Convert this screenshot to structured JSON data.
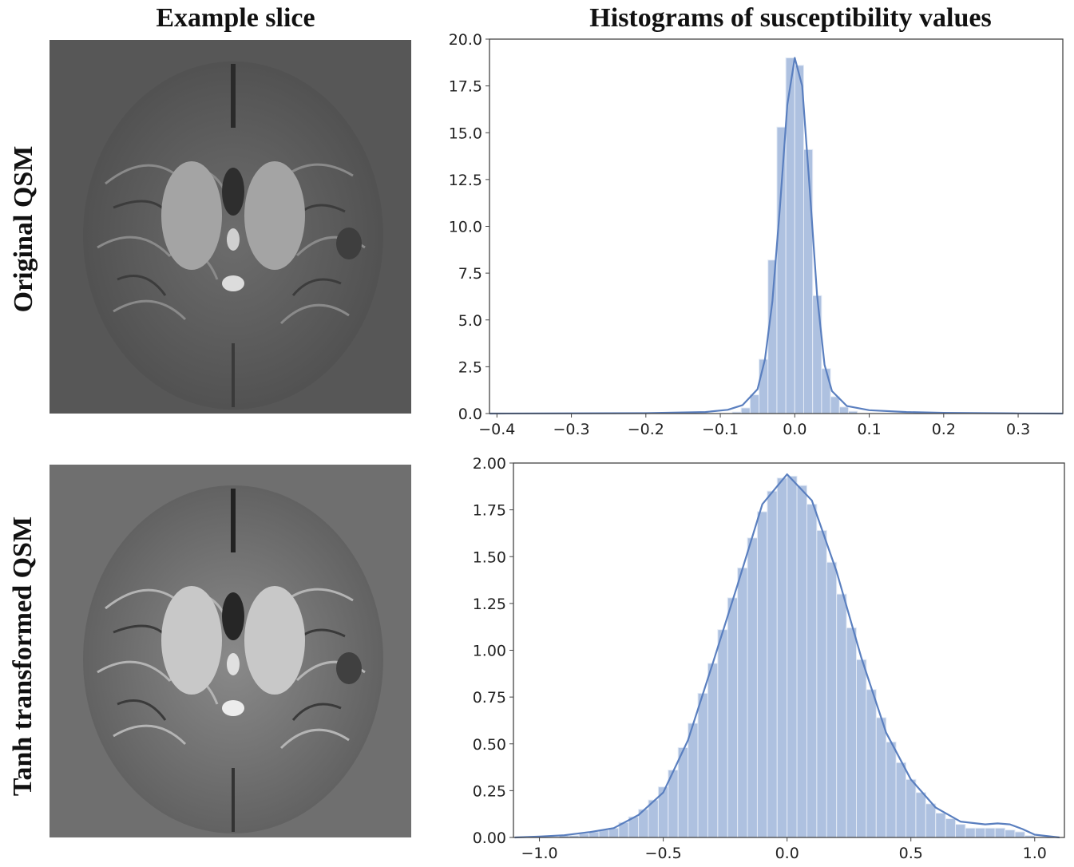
{
  "headings": {
    "left": "Example slice",
    "right": "Histograms of susceptibility values"
  },
  "rows": [
    {
      "label": "Original QSM",
      "background": "#575757"
    },
    {
      "label": "Tanh transformed QSM",
      "background": "#6f6f6f"
    }
  ],
  "colors": {
    "bar_fill": "#aec1e0",
    "bar_edge": "#e4ebf6",
    "kde_line": "#5a7fbf"
  },
  "chart_data": [
    {
      "type": "bar",
      "title": "",
      "xlabel": "",
      "ylabel": "",
      "xlim": [
        -0.41,
        0.36
      ],
      "ylim": [
        0,
        20.0
      ],
      "xticks": [
        -0.4,
        -0.3,
        -0.2,
        -0.1,
        0.0,
        0.1,
        0.2,
        0.3
      ],
      "xtick_labels": [
        "−0.4",
        "−0.3",
        "−0.2",
        "−0.1",
        "0.0",
        "0.1",
        "0.2",
        "0.3"
      ],
      "yticks": [
        0.0,
        2.5,
        5.0,
        7.5,
        10.0,
        12.5,
        15.0,
        17.5,
        20.0
      ],
      "ytick_labels": [
        "0.0",
        "2.5",
        "5.0",
        "7.5",
        "10.0",
        "12.5",
        "15.0",
        "17.5",
        "20.0"
      ],
      "bin_width": 0.012,
      "bin_centers": [
        -0.078,
        -0.066,
        -0.054,
        -0.042,
        -0.03,
        -0.018,
        -0.006,
        0.006,
        0.018,
        0.03,
        0.042,
        0.054,
        0.066,
        0.078
      ],
      "values": [
        0.08,
        0.3,
        1.0,
        2.9,
        8.2,
        15.3,
        19.0,
        18.6,
        14.1,
        6.3,
        2.4,
        0.9,
        0.35,
        0.12
      ],
      "kde": {
        "x": [
          -0.41,
          -0.2,
          -0.12,
          -0.09,
          -0.07,
          -0.05,
          -0.04,
          -0.03,
          -0.02,
          -0.01,
          0.0,
          0.01,
          0.02,
          0.03,
          0.04,
          0.05,
          0.07,
          0.1,
          0.15,
          0.2,
          0.3,
          0.36
        ],
        "y": [
          0.0,
          0.02,
          0.08,
          0.2,
          0.45,
          1.3,
          2.9,
          6.0,
          11.0,
          16.5,
          19.0,
          17.5,
          12.0,
          6.3,
          2.6,
          1.2,
          0.4,
          0.18,
          0.08,
          0.04,
          0.01,
          0.0
        ]
      }
    },
    {
      "type": "bar",
      "title": "",
      "xlabel": "",
      "ylabel": "",
      "xlim": [
        -1.105,
        1.12
      ],
      "ylim": [
        0,
        2.0
      ],
      "xticks": [
        -1.0,
        -0.5,
        0.0,
        0.5,
        1.0
      ],
      "xtick_labels": [
        "−1.0",
        "−0.5",
        "0.0",
        "0.5",
        "1.0"
      ],
      "yticks": [
        0.0,
        0.25,
        0.5,
        0.75,
        1.0,
        1.25,
        1.5,
        1.75,
        2.0
      ],
      "ytick_labels": [
        "0.00",
        "0.25",
        "0.50",
        "0.75",
        "1.00",
        "1.25",
        "1.50",
        "1.75",
        "2.00"
      ],
      "bin_width": 0.04,
      "bin_centers": [
        -0.9,
        -0.86,
        -0.82,
        -0.78,
        -0.74,
        -0.7,
        -0.66,
        -0.62,
        -0.58,
        -0.54,
        -0.5,
        -0.46,
        -0.42,
        -0.38,
        -0.34,
        -0.3,
        -0.26,
        -0.22,
        -0.18,
        -0.14,
        -0.1,
        -0.06,
        -0.02,
        0.02,
        0.06,
        0.1,
        0.14,
        0.18,
        0.22,
        0.26,
        0.3,
        0.34,
        0.38,
        0.42,
        0.46,
        0.5,
        0.54,
        0.58,
        0.62,
        0.66,
        0.7,
        0.74,
        0.78,
        0.82,
        0.86,
        0.9,
        0.94,
        0.98
      ],
      "values": [
        0.01,
        0.01,
        0.02,
        0.03,
        0.04,
        0.05,
        0.08,
        0.11,
        0.15,
        0.2,
        0.27,
        0.36,
        0.48,
        0.61,
        0.77,
        0.93,
        1.11,
        1.28,
        1.44,
        1.6,
        1.74,
        1.85,
        1.92,
        1.93,
        1.88,
        1.78,
        1.64,
        1.47,
        1.3,
        1.12,
        0.95,
        0.79,
        0.64,
        0.51,
        0.4,
        0.31,
        0.24,
        0.18,
        0.13,
        0.1,
        0.07,
        0.05,
        0.05,
        0.05,
        0.05,
        0.04,
        0.03,
        0.01
      ],
      "kde": {
        "x": [
          -1.1,
          -1.0,
          -0.9,
          -0.8,
          -0.7,
          -0.6,
          -0.5,
          -0.4,
          -0.3,
          -0.2,
          -0.1,
          0.0,
          0.1,
          0.2,
          0.3,
          0.4,
          0.5,
          0.6,
          0.7,
          0.8,
          0.85,
          0.9,
          0.95,
          1.0,
          1.1
        ],
        "y": [
          0.0,
          0.005,
          0.012,
          0.028,
          0.05,
          0.12,
          0.24,
          0.52,
          0.93,
          1.35,
          1.78,
          1.94,
          1.8,
          1.42,
          0.96,
          0.56,
          0.31,
          0.16,
          0.085,
          0.07,
          0.075,
          0.07,
          0.045,
          0.015,
          0.0
        ]
      }
    }
  ]
}
